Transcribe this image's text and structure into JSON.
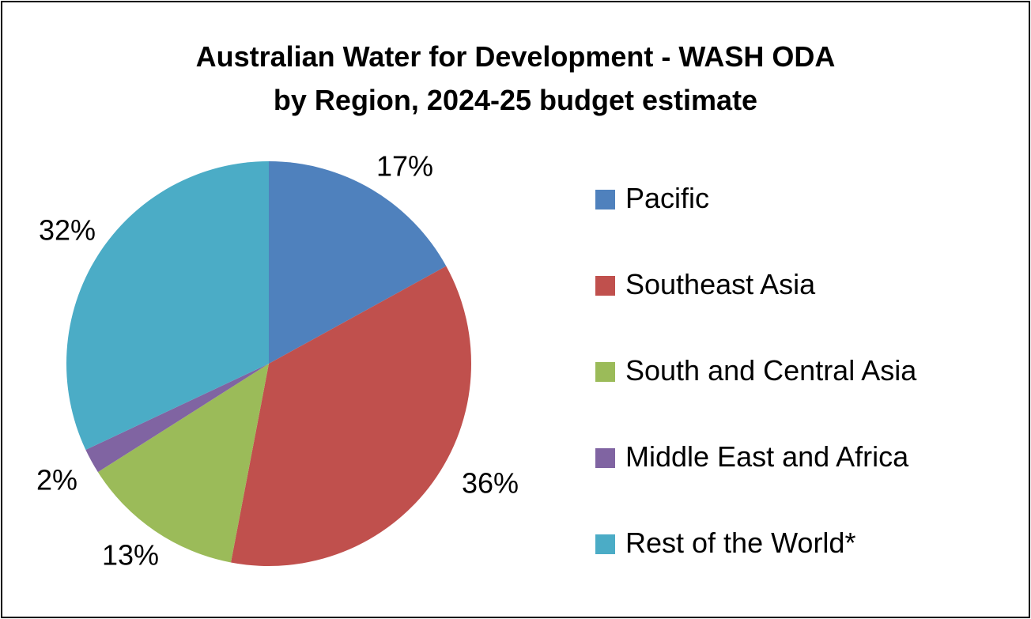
{
  "chart_data": {
    "type": "pie",
    "title_lines": [
      "Australian Water for Development - WASH ODA",
      "by Region, 2024-25 budget estimate"
    ],
    "slices": [
      {
        "label": "Pacific",
        "value": 17,
        "display": "17%",
        "color": "#4F81BD"
      },
      {
        "label": "Southeast Asia",
        "value": 36,
        "display": "36%",
        "color": "#C0504D"
      },
      {
        "label": "South and Central Asia",
        "value": 13,
        "display": "13%",
        "color": "#9BBB59"
      },
      {
        "label": "Middle East and Africa",
        "value": 2,
        "display": "2%",
        "color": "#8064A2"
      },
      {
        "label": "Rest of the World*",
        "value": 32,
        "display": "32%",
        "color": "#4BACC6"
      }
    ],
    "start_angle_deg": 0,
    "direction": "clockwise",
    "legend_position": "right",
    "data_labels": "outside"
  }
}
